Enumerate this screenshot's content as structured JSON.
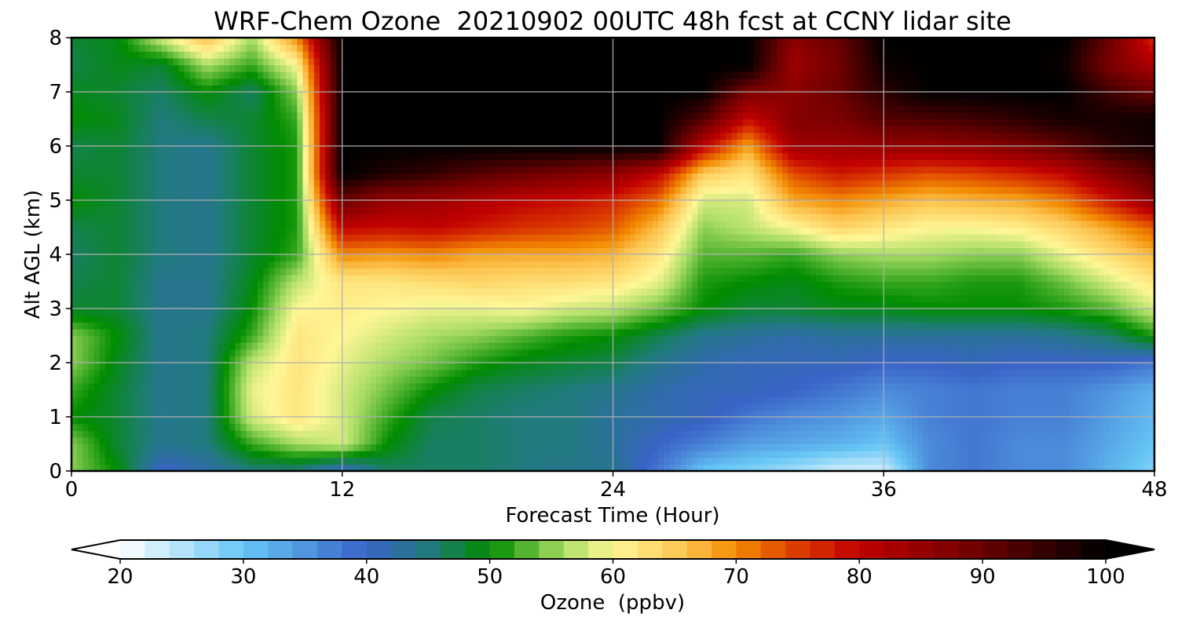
{
  "chart_data": {
    "type": "heatmap",
    "title": "WRF-Chem Ozone  20210902 00UTC 48h fcst at CCNY lidar site",
    "xlabel": "Forecast Time (Hour)",
    "ylabel": "Alt AGL (km)",
    "xlim": [
      0,
      48
    ],
    "ylim": [
      0,
      8
    ],
    "xticks": [
      "0",
      "12",
      "24",
      "36",
      "48"
    ],
    "yticks": [
      "0",
      "1",
      "2",
      "3",
      "4",
      "5",
      "6",
      "7",
      "8"
    ],
    "grid": true,
    "colorbar": {
      "label": "Ozone  (ppbv)",
      "min": 20,
      "max": 100,
      "step": 2,
      "ticks": [
        "20",
        "30",
        "40",
        "50",
        "60",
        "70",
        "80",
        "90",
        "100"
      ],
      "extend": "both",
      "color_stops": [
        {
          "v": 20,
          "c": "#ffffff"
        },
        {
          "v": 30,
          "c": "#66c6f5"
        },
        {
          "v": 40,
          "c": "#3a63c8"
        },
        {
          "v": 45,
          "c": "#217a7e"
        },
        {
          "v": 50,
          "c": "#008c00"
        },
        {
          "v": 56,
          "c": "#a8dc64"
        },
        {
          "v": 60,
          "c": "#fff797"
        },
        {
          "v": 66,
          "c": "#fcc24d"
        },
        {
          "v": 70,
          "c": "#f28a00"
        },
        {
          "v": 75,
          "c": "#dc3c00"
        },
        {
          "v": 80,
          "c": "#c00000"
        },
        {
          "v": 90,
          "c": "#6a0000"
        },
        {
          "v": 100,
          "c": "#000000"
        }
      ]
    },
    "hours": [
      0,
      2,
      4,
      6,
      8,
      10,
      12,
      14,
      16,
      18,
      20,
      22,
      24,
      26,
      28,
      30,
      32,
      34,
      36,
      38,
      40,
      42,
      44,
      46,
      48
    ],
    "altitudes_km": [
      0,
      0.5,
      1,
      1.5,
      2,
      2.5,
      3,
      3.5,
      4,
      4.5,
      5,
      5.5,
      6,
      6.5,
      7,
      7.5,
      8
    ],
    "ozone_ppbv": [
      [
        55,
        50,
        40,
        42,
        45,
        45,
        40,
        46,
        46,
        46,
        45,
        44,
        44,
        38,
        30,
        28,
        26,
        23,
        23,
        36,
        38,
        36,
        36,
        32,
        28
      ],
      [
        55,
        48,
        44,
        45,
        52,
        56,
        58,
        50,
        46,
        46,
        45,
        45,
        43,
        40,
        37,
        34,
        33,
        32,
        30,
        36,
        38,
        36,
        36,
        33,
        30
      ],
      [
        50,
        48,
        44,
        45,
        58,
        62,
        58,
        52,
        47,
        46,
        45,
        45,
        43,
        42,
        41,
        38,
        36,
        35,
        33,
        37,
        38,
        37,
        37,
        34,
        31
      ],
      [
        52,
        48,
        44,
        45,
        59,
        62,
        58,
        54,
        50,
        47,
        46,
        45,
        44,
        42,
        41,
        41,
        40,
        38,
        36,
        37,
        38,
        37,
        37,
        35,
        32
      ],
      [
        55,
        49,
        44,
        45,
        57,
        62,
        59,
        56,
        54,
        51,
        49,
        48,
        47,
        44,
        42,
        41,
        41,
        41,
        40,
        40,
        41,
        40,
        40,
        40,
        38
      ],
      [
        55,
        50,
        44,
        45,
        52,
        62,
        60,
        58,
        56,
        55,
        53,
        51,
        50,
        47,
        44,
        43,
        42,
        43,
        43,
        43,
        43,
        43,
        44,
        46,
        51
      ],
      [
        48,
        48,
        44,
        44,
        50,
        60,
        61,
        60,
        59,
        59,
        60,
        58,
        57,
        54,
        50,
        48,
        48,
        49,
        49,
        50,
        50,
        50,
        51,
        53,
        58
      ],
      [
        47,
        48,
        44,
        44,
        49,
        57,
        62,
        62,
        63,
        64,
        63,
        63,
        62,
        59,
        51,
        50,
        49,
        51,
        52,
        52,
        51,
        51,
        54,
        58,
        62
      ],
      [
        46,
        48,
        45,
        44,
        48,
        52,
        70,
        69,
        70,
        68,
        68,
        68,
        67,
        62,
        53,
        53,
        52,
        55,
        56,
        56,
        55,
        55,
        59,
        63,
        67
      ],
      [
        47,
        48,
        45,
        44,
        48,
        51,
        80,
        79,
        80,
        78,
        76,
        75,
        73,
        66,
        55,
        57,
        60,
        64,
        62,
        60,
        60,
        61,
        64,
        68,
        73
      ],
      [
        50,
        48,
        45,
        44,
        48,
        51,
        90,
        85,
        84,
        82,
        80,
        79,
        77,
        72,
        58,
        58,
        68,
        70,
        68,
        66,
        67,
        68,
        71,
        78,
        86
      ],
      [
        48,
        48,
        45,
        44,
        48,
        51,
        100,
        97,
        95,
        92,
        90,
        88,
        86,
        80,
        65,
        62,
        74,
        78,
        76,
        74,
        75,
        77,
        80,
        87,
        92
      ],
      [
        47,
        48,
        45,
        44,
        48,
        51,
        100,
        100,
        100,
        100,
        100,
        100,
        100,
        100,
        80,
        68,
        84,
        84,
        85,
        85,
        86,
        88,
        91,
        96,
        98
      ],
      [
        50,
        49,
        45,
        47,
        48,
        52,
        100,
        100,
        100,
        100,
        100,
        100,
        100,
        100,
        92,
        79,
        87,
        88,
        92,
        93,
        94,
        96,
        98,
        98,
        99
      ],
      [
        49,
        48,
        46,
        50,
        46,
        55,
        100,
        100,
        100,
        100,
        100,
        100,
        100,
        100,
        100,
        88,
        86,
        90,
        96,
        100,
        100,
        100,
        100,
        94,
        90
      ],
      [
        47,
        49,
        48,
        56,
        52,
        60,
        100,
        100,
        100,
        100,
        100,
        100,
        100,
        100,
        100,
        100,
        84,
        89,
        99,
        100,
        100,
        100,
        99,
        88,
        82
      ],
      [
        48,
        49,
        58,
        66,
        56,
        70,
        100,
        100,
        100,
        100,
        100,
        100,
        100,
        100,
        100,
        100,
        86,
        90,
        100,
        100,
        100,
        100,
        100,
        90,
        76
      ]
    ]
  }
}
